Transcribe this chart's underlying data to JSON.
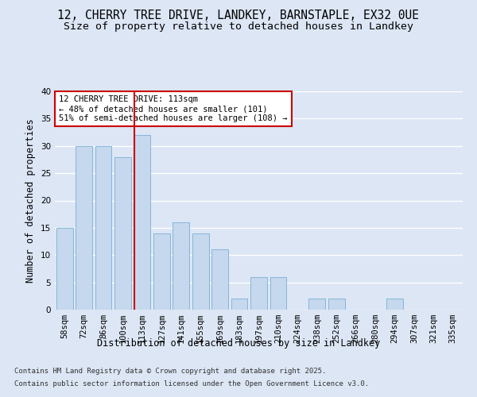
{
  "title_line1": "12, CHERRY TREE DRIVE, LANDKEY, BARNSTAPLE, EX32 0UE",
  "title_line2": "Size of property relative to detached houses in Landkey",
  "xlabel": "Distribution of detached houses by size in Landkey",
  "ylabel": "Number of detached properties",
  "categories": [
    "58sqm",
    "72sqm",
    "86sqm",
    "100sqm",
    "113sqm",
    "127sqm",
    "141sqm",
    "155sqm",
    "169sqm",
    "183sqm",
    "197sqm",
    "210sqm",
    "224sqm",
    "238sqm",
    "252sqm",
    "266sqm",
    "280sqm",
    "294sqm",
    "307sqm",
    "321sqm",
    "335sqm"
  ],
  "values": [
    15,
    30,
    30,
    28,
    32,
    14,
    16,
    14,
    11,
    2,
    6,
    6,
    0,
    2,
    2,
    0,
    0,
    2,
    0,
    0,
    0
  ],
  "bar_color": "#c5d8ed",
  "bar_edge_color": "#7aafd4",
  "vline_index": 4,
  "vline_color": "#cc0000",
  "annotation_text": "12 CHERRY TREE DRIVE: 113sqm\n← 48% of detached houses are smaller (101)\n51% of semi-detached houses are larger (108) →",
  "annotation_box_color": "white",
  "annotation_box_edge": "#cc0000",
  "ylim": [
    0,
    40
  ],
  "yticks": [
    0,
    5,
    10,
    15,
    20,
    25,
    30,
    35,
    40
  ],
  "background_color": "#dce6f5",
  "plot_background": "#dce6f5",
  "grid_color": "white",
  "footer_line1": "Contains HM Land Registry data © Crown copyright and database right 2025.",
  "footer_line2": "Contains public sector information licensed under the Open Government Licence v3.0.",
  "title_fontsize": 10.5,
  "subtitle_fontsize": 9.5,
  "axis_label_fontsize": 8.5,
  "tick_fontsize": 7.5,
  "annotation_fontsize": 7.5,
  "footer_fontsize": 6.5
}
